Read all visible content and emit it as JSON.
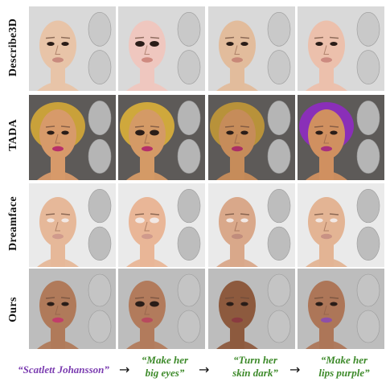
{
  "rows": [
    {
      "label": "Describe3D",
      "style": "plain"
    },
    {
      "label": "TADA",
      "style": "painted"
    },
    {
      "label": "Dreamface",
      "style": "bald"
    },
    {
      "label": "Ours",
      "style": "ours"
    }
  ],
  "captions": [
    {
      "text_line1": "“Scatlett Johansson”",
      "text_line2": "",
      "color": "#7a3bb0"
    },
    {
      "text_line1": "“Make her",
      "text_line2": "big eyes”",
      "color": "#3d8a2a"
    },
    {
      "text_line1": "“Turn her",
      "text_line2": "skin dark”",
      "color": "#3d8a2a"
    },
    {
      "text_line1": "“Make her",
      "text_line2": "lips purple”",
      "color": "#3d8a2a"
    }
  ],
  "arrows": [
    "→",
    "→",
    "→"
  ]
}
